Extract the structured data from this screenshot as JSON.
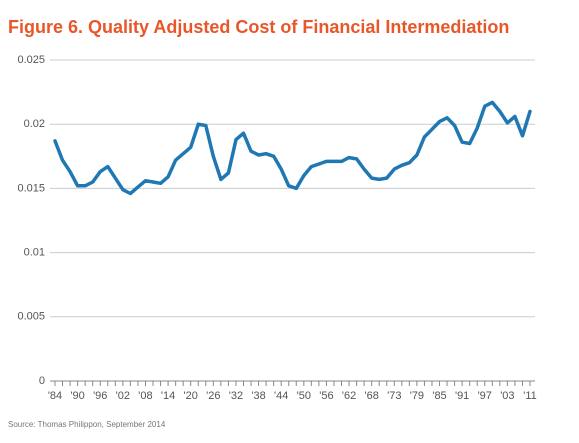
{
  "chart_data": {
    "type": "line",
    "title": "Figure 6. Quality Adjusted Cost of Financial Intermediation",
    "source": "Source: Thomas Philippon, September 2014",
    "categories": [
      "'84",
      null,
      null,
      "'90",
      null,
      null,
      "'96",
      null,
      null,
      "'02",
      null,
      null,
      "'08",
      null,
      null,
      "'14",
      null,
      null,
      "'20",
      null,
      null,
      "'26",
      null,
      null,
      "'32",
      null,
      null,
      "'38",
      null,
      null,
      "'44",
      null,
      null,
      "'50",
      null,
      null,
      "'56",
      null,
      null,
      "'62",
      null,
      null,
      "'68",
      null,
      null,
      "'73",
      null,
      null,
      "'79",
      null,
      null,
      "'85",
      null,
      null,
      "'91",
      null,
      null,
      "'97",
      null,
      null,
      "'03",
      null,
      null,
      "'11"
    ],
    "series": [
      {
        "name": "Quality adjusted cost",
        "color": "#1f78b4",
        "values": [
          0.0187,
          0.0172,
          0.0163,
          0.0152,
          0.0152,
          0.0155,
          0.0163,
          0.0167,
          0.0158,
          0.0149,
          0.0146,
          0.0151,
          0.0156,
          0.0155,
          0.0154,
          0.0159,
          0.0172,
          0.0177,
          0.0182,
          0.02,
          0.0199,
          0.0175,
          0.0157,
          0.0162,
          0.0188,
          0.0193,
          0.0179,
          0.0176,
          0.0177,
          0.0175,
          0.0165,
          0.0152,
          0.015,
          0.016,
          0.0167,
          0.0169,
          0.0171,
          0.0171,
          0.0171,
          0.0174,
          0.0173,
          0.0165,
          0.0158,
          0.0157,
          0.0158,
          0.0165,
          0.0168,
          0.017,
          0.0176,
          0.019,
          0.0196,
          0.0202,
          0.0205,
          0.0199,
          0.0186,
          0.0185,
          0.0197,
          0.0214,
          0.0217,
          0.021,
          0.0201,
          0.0206,
          0.0191,
          0.021
        ]
      }
    ],
    "ylim": [
      0,
      0.025
    ],
    "yticks": [
      0,
      0.005,
      0.01,
      0.015,
      0.02,
      0.025
    ],
    "grid": true
  }
}
